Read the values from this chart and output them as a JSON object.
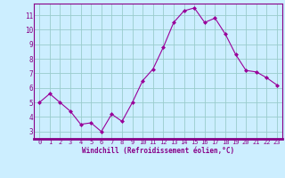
{
  "x": [
    0,
    1,
    2,
    3,
    4,
    5,
    6,
    7,
    8,
    9,
    10,
    11,
    12,
    13,
    14,
    15,
    16,
    17,
    18,
    19,
    20,
    21,
    22,
    23
  ],
  "y": [
    5.0,
    5.6,
    5.0,
    4.4,
    3.5,
    3.6,
    3.0,
    4.2,
    3.7,
    5.0,
    6.5,
    7.3,
    8.8,
    10.5,
    11.3,
    11.5,
    10.5,
    10.8,
    9.7,
    8.3,
    7.2,
    7.1,
    6.7,
    6.2
  ],
  "line_color": "#990099",
  "marker": "D",
  "marker_size": 2,
  "bg_color": "#cceeff",
  "grid_color": "#99cccc",
  "xlabel": "Windchill (Refroidissement éolien,°C)",
  "xlim": [
    -0.5,
    23.5
  ],
  "ylim": [
    2.5,
    11.8
  ],
  "yticks": [
    3,
    4,
    5,
    6,
    7,
    8,
    9,
    10,
    11
  ],
  "xticks": [
    0,
    1,
    2,
    3,
    4,
    5,
    6,
    7,
    8,
    9,
    10,
    11,
    12,
    13,
    14,
    15,
    16,
    17,
    18,
    19,
    20,
    21,
    22,
    23
  ],
  "tick_color": "#880088",
  "label_color": "#880088",
  "spine_color": "#880088",
  "axis_bg": "#cceeff"
}
